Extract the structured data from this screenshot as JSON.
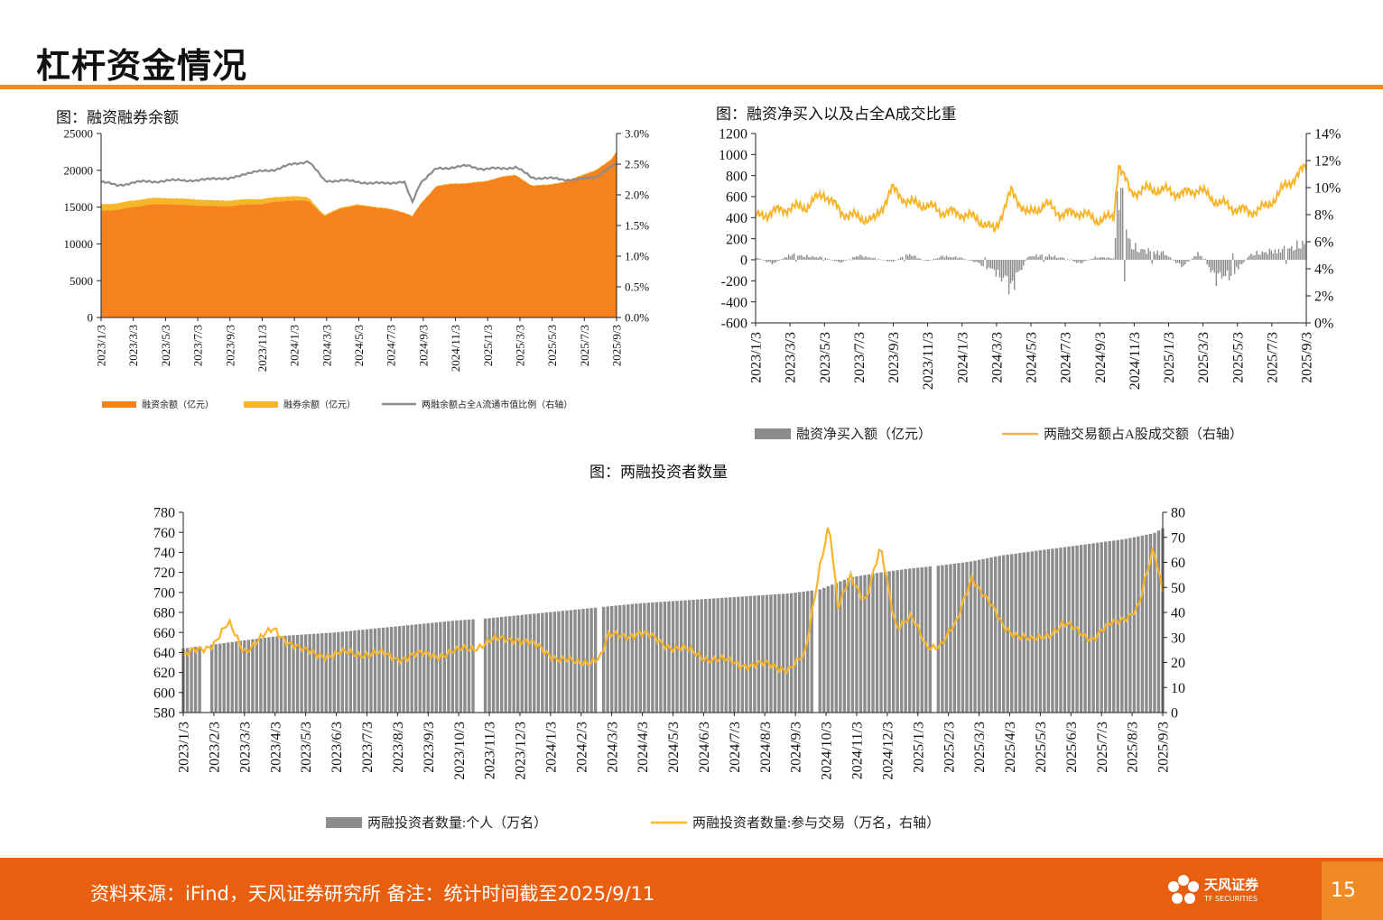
{
  "page": {
    "title": "杠杆资金情况",
    "footer_text": "资料来源：iFind，天风证券研究所 备注：统计时间截至2025/9/11",
    "logo_text": "天风证券",
    "logo_sub": "TF SECURITIES",
    "page_number": "15",
    "colors": {
      "accent": "#F28C28",
      "footer": "#E8600F",
      "orange": "#F5821F",
      "yellow": "#F7B52C",
      "gray": "#8C8C8C"
    }
  },
  "chart_data": [
    {
      "type": "area",
      "title": "图：融资融券余额",
      "x_tick_labels": [
        "2023/1/3",
        "2023/3/3",
        "2023/5/3",
        "2023/7/3",
        "2023/9/3",
        "2023/11/3",
        "2024/1/3",
        "2024/3/3",
        "2024/5/3",
        "2024/7/3",
        "2024/9/3",
        "2024/11/3",
        "2025/1/3",
        "2025/3/3",
        "2025/5/3",
        "2025/7/3",
        "2025/9/3"
      ],
      "y_left_ticks": [
        "0",
        "5000",
        "10000",
        "15000",
        "20000",
        "25000"
      ],
      "y_right_ticks": [
        "0.0%",
        "0.5%",
        "1.0%",
        "1.5%",
        "2.0%",
        "2.5%",
        "3.0%"
      ],
      "ylim_left": [
        0,
        25000
      ],
      "ylim_right": [
        0,
        3.0
      ],
      "x_months": [
        0,
        1,
        2,
        3,
        4,
        5,
        6,
        7,
        8,
        9,
        10,
        11,
        12,
        13,
        14,
        15,
        16,
        17,
        18,
        19,
        19.5,
        20,
        21,
        22,
        23,
        24,
        25,
        26,
        27,
        28,
        29,
        30,
        31,
        32,
        32.3
      ],
      "series": [
        {
          "name": "融资余额（亿元）",
          "axis": "left",
          "stacked": true,
          "color": "#F5821F",
          "values": [
            14500,
            14600,
            15000,
            15300,
            15400,
            15300,
            15200,
            15100,
            15100,
            15300,
            15400,
            15700,
            15900,
            15800,
            13700,
            14800,
            15200,
            15000,
            14700,
            14200,
            13700,
            15300,
            17800,
            18100,
            18200,
            18400,
            19000,
            19300,
            17800,
            18000,
            18300,
            19200,
            19900,
            21500,
            22500
          ]
        },
        {
          "name": "融券余额（亿元）",
          "axis": "left",
          "stacked": true,
          "color": "#F7B52C",
          "values": [
            900,
            900,
            900,
            900,
            850,
            850,
            850,
            800,
            800,
            750,
            700,
            650,
            600,
            500,
            200,
            150,
            150,
            120,
            100,
            100,
            100,
            100,
            100,
            100,
            100,
            100,
            100,
            100,
            100,
            100,
            100,
            100,
            100,
            100,
            100
          ]
        },
        {
          "name": "两融余额占全A流通市值比例（右轴）",
          "axis": "right",
          "color": "#8C8C8C",
          "values": [
            2.22,
            2.15,
            2.2,
            2.22,
            2.22,
            2.25,
            2.22,
            2.28,
            2.25,
            2.35,
            2.38,
            2.42,
            2.5,
            2.55,
            2.23,
            2.23,
            2.22,
            2.18,
            2.2,
            2.2,
            1.88,
            2.2,
            2.42,
            2.45,
            2.47,
            2.42,
            2.43,
            2.45,
            2.28,
            2.27,
            2.25,
            2.25,
            2.3,
            2.45,
            2.5
          ]
        }
      ]
    },
    {
      "type": "bar+line",
      "title": "图：融资净买入以及占全A成交比重",
      "x_tick_labels": [
        "2023/1/3",
        "2023/3/3",
        "2023/5/3",
        "2023/7/3",
        "2023/9/3",
        "2023/11/3",
        "2024/1/3",
        "2024/3/3",
        "2024/5/3",
        "2024/7/3",
        "2024/9/3",
        "2024/11/3",
        "2025/1/3",
        "2025/3/3",
        "2025/5/3",
        "2025/7/3",
        "2025/9/3"
      ],
      "y_left_ticks": [
        "-600",
        "-400",
        "-200",
        "0",
        "200",
        "400",
        "600",
        "800",
        "1000",
        "1200"
      ],
      "y_right_ticks": [
        "0%",
        "2%",
        "4%",
        "6%",
        "8%",
        "10%",
        "12%",
        "14%"
      ],
      "ylim_left": [
        -600,
        1200
      ],
      "ylim_right": [
        0,
        14
      ],
      "x_months": [
        0,
        1,
        2,
        3,
        4,
        5,
        6,
        7,
        8,
        9,
        10,
        11,
        12,
        13,
        14,
        15,
        16,
        17,
        18,
        19,
        20,
        21,
        21.3,
        22,
        23,
        24,
        25,
        26,
        27,
        28,
        29,
        30,
        31,
        32,
        32.3
      ],
      "series": [
        {
          "name": "融资净买入额（亿元）",
          "axis": "left",
          "color": "#8C8C8C",
          "values": [
            40,
            -60,
            70,
            50,
            30,
            -40,
            60,
            20,
            -30,
            80,
            -20,
            50,
            30,
            -40,
            -150,
            -380,
            50,
            60,
            30,
            -50,
            40,
            20,
            1050,
            180,
            120,
            90,
            -100,
            100,
            -250,
            -200,
            70,
            110,
            140,
            200,
            260
          ]
        },
        {
          "name": "两融交易额占A股成交额（右轴）",
          "axis": "right",
          "color": "#F7B52C",
          "values": [
            7.8,
            8.2,
            8.5,
            8.6,
            9.6,
            8.2,
            7.8,
            7.6,
            9.9,
            8.9,
            8.7,
            8.2,
            8.1,
            7.7,
            6.8,
            9.7,
            8.0,
            8.8,
            8.0,
            8.2,
            7.6,
            7.8,
            11.8,
            9.6,
            9.9,
            9.8,
            9.5,
            9.9,
            9.0,
            8.5,
            8.2,
            8.6,
            10.0,
            11.2,
            11.5
          ]
        }
      ]
    },
    {
      "type": "bar+line",
      "title": "图：两融投资者数量",
      "x_tick_labels": [
        "2023/1/3",
        "2023/2/3",
        "2023/3/3",
        "2023/4/3",
        "2023/5/3",
        "2023/6/3",
        "2023/7/3",
        "2023/8/3",
        "2023/9/3",
        "2023/10/3",
        "2023/11/3",
        "2023/12/3",
        "2024/1/3",
        "2024/2/3",
        "2024/3/3",
        "2024/4/3",
        "2024/5/3",
        "2024/6/3",
        "2024/7/3",
        "2024/8/3",
        "2024/9/3",
        "2024/10/3",
        "2024/11/3",
        "2024/12/3",
        "2025/1/3",
        "2025/2/3",
        "2025/3/3",
        "2025/4/3",
        "2025/5/3",
        "2025/6/3",
        "2025/7/3",
        "2025/8/3",
        "2025/9/3"
      ],
      "y_left_ticks": [
        "580",
        "600",
        "620",
        "640",
        "660",
        "680",
        "700",
        "720",
        "740",
        "760",
        "780"
      ],
      "y_right_ticks": [
        "0",
        "10",
        "20",
        "30",
        "40",
        "50",
        "60",
        "70",
        "80"
      ],
      "ylim_left": [
        580,
        780
      ],
      "ylim_right": [
        0,
        80
      ],
      "gap_months": [
        0.75,
        9.75,
        13.75,
        20.9,
        24.75
      ],
      "bar_months": [
        0,
        1,
        2,
        3,
        4,
        5,
        6,
        7,
        8,
        9,
        10,
        11,
        12,
        13,
        14,
        15,
        16,
        17,
        18,
        19,
        20,
        21,
        22,
        23,
        24,
        25,
        26,
        27,
        28,
        29,
        30,
        31,
        32,
        32.3
      ],
      "bar_values": [
        644,
        648,
        652,
        656,
        658,
        660,
        663,
        666,
        669,
        672,
        674,
        677,
        680,
        683,
        686,
        689,
        691,
        693,
        695,
        697,
        699,
        703,
        715,
        720,
        724,
        727,
        731,
        737,
        741,
        745,
        749,
        753,
        759,
        764
      ],
      "line_months": [
        0,
        1,
        1.5,
        2,
        3,
        4,
        5,
        6,
        7,
        8,
        9,
        10,
        11,
        12,
        13,
        13.8,
        14,
        15,
        16,
        17,
        18,
        19,
        20,
        20.5,
        21,
        21.3,
        21.6,
        22,
        22.5,
        23,
        23.5,
        24,
        24.5,
        25,
        25.5,
        26,
        27,
        28,
        29,
        30,
        31,
        31.5,
        32,
        32.3
      ],
      "series": [
        {
          "name": "两融投资者数量:个人（万名）",
          "axis": "left",
          "color": "#8C8C8C"
        },
        {
          "name": "两融投资者数量:参与交易（万名，右轴）",
          "axis": "right",
          "color": "#F7B52C",
          "values": [
            22,
            28,
            35,
            25,
            33,
            24,
            23,
            24,
            22,
            23,
            24,
            28,
            30,
            24,
            19,
            23,
            30,
            32,
            27,
            23,
            20,
            19,
            18,
            22,
            60,
            76,
            40,
            55,
            45,
            65,
            35,
            38,
            26,
            28,
            35,
            55,
            35,
            28,
            35,
            30,
            38,
            42,
            65,
            50
          ]
        }
      ]
    }
  ]
}
